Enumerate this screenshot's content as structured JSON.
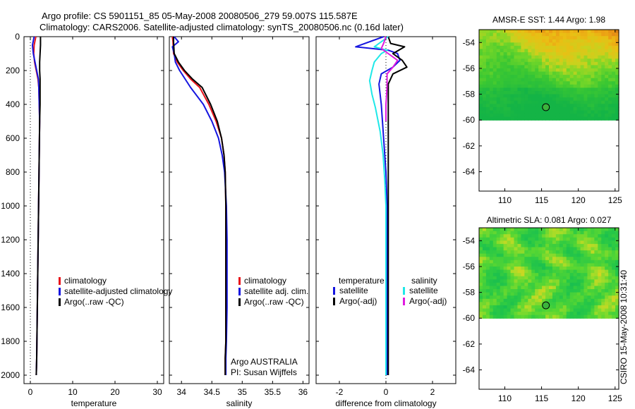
{
  "header": {
    "line1": "Argo profile: CS 5901151_85 05-May-2008 20080506_279 59.007S 115.587E",
    "line2": "Climatology: CARS2006. Satellite-adjusted climatology: synTS_20080506.nc (0.16d later)"
  },
  "watermark": "CSIRO 15-May-2008 10:31:40",
  "colors": {
    "red": "#e8121a",
    "blue": "#1515e0",
    "black": "#000000",
    "cyan": "#1ee8e8",
    "magenta": "#e01ae0"
  },
  "chart_data": [
    {
      "type": "line",
      "xlabel": "temperature",
      "ylabel": "",
      "xlim": [
        -1.5,
        31.5
      ],
      "ylim": [
        0,
        2050
      ],
      "xticks": [
        0,
        10,
        20,
        30
      ],
      "yticks": [
        0,
        200,
        400,
        600,
        800,
        1000,
        1200,
        1400,
        1600,
        1800,
        2000
      ],
      "legend": {
        "position": "middle-right",
        "entries": [
          {
            "label": "climatology",
            "color": "#e8121a"
          },
          {
            "label": "satellite-adjusted climatology",
            "color": "#1515e0"
          },
          {
            "label": "Argo(..raw -QC)",
            "color": "#000000"
          }
        ]
      },
      "series": [
        {
          "name": "climatology",
          "color": "#e8121a",
          "x": [
            1.3,
            0.9,
            0.8,
            1.0,
            1.4,
            1.8,
            2.0,
            2.1,
            2.2,
            2.1,
            2.0,
            1.9,
            1.8,
            1.7,
            1.6,
            1.5,
            1.4
          ],
          "y": [
            0,
            50,
            100,
            150,
            200,
            250,
            300,
            400,
            500,
            700,
            900,
            1100,
            1300,
            1500,
            1700,
            1900,
            2000
          ]
        },
        {
          "name": "satellite-adjusted climatology",
          "color": "#1515e0",
          "x": [
            0.9,
            0.5,
            0.7,
            1.1,
            1.5,
            1.9,
            2.0,
            2.1,
            2.2,
            2.1,
            2.0,
            1.9,
            1.8,
            1.7,
            1.6,
            1.5,
            1.4
          ],
          "y": [
            0,
            50,
            100,
            150,
            200,
            250,
            300,
            400,
            500,
            700,
            900,
            1100,
            1300,
            1500,
            1700,
            1900,
            2000
          ]
        },
        {
          "name": "Argo(..raw -QC)",
          "color": "#000000",
          "x": [
            2.4,
            2.4,
            2.3,
            2.2,
            2.2,
            2.3,
            2.3,
            2.3,
            2.2,
            2.1,
            2.0,
            1.9,
            1.8,
            1.7,
            1.6,
            1.5,
            1.4
          ],
          "y": [
            0,
            50,
            100,
            150,
            200,
            250,
            300,
            400,
            500,
            700,
            900,
            1100,
            1300,
            1500,
            1700,
            1900,
            2000
          ]
        }
      ]
    },
    {
      "type": "line",
      "xlabel": "salinity",
      "ylabel": "",
      "xlim": [
        33.8,
        36.1
      ],
      "ylim": [
        0,
        2050
      ],
      "xticks": [
        34,
        34.5,
        35,
        35.5,
        36
      ],
      "xticklabels": [
        "34",
        "34.5",
        "35",
        "35.5",
        "36"
      ],
      "yticks": [
        0,
        200,
        400,
        600,
        800,
        1000,
        1200,
        1400,
        1600,
        1800,
        2000
      ],
      "legend": {
        "position": "middle-right",
        "entries": [
          {
            "label": "climatology",
            "color": "#e8121a"
          },
          {
            "label": "satellite adj. clim.",
            "color": "#1515e0"
          },
          {
            "label": "Argo(..raw -QC)",
            "color": "#000000"
          }
        ]
      },
      "annotations": [
        "Argo AUSTRALIA",
        "PI: Susan Wijffels"
      ],
      "series": [
        {
          "name": "climatology",
          "color": "#e8121a",
          "x": [
            33.85,
            33.86,
            33.87,
            33.93,
            34.03,
            34.15,
            34.3,
            34.45,
            34.57,
            34.66,
            34.7,
            34.72,
            34.73,
            34.73,
            34.73,
            34.73,
            34.73,
            34.72,
            34.72
          ],
          "y": [
            0,
            30,
            100,
            150,
            200,
            250,
            300,
            400,
            500,
            600,
            700,
            800,
            1000,
            1200,
            1400,
            1600,
            1800,
            1900,
            2000
          ]
        },
        {
          "name": "satellite adj. clim.",
          "color": "#1515e0",
          "x": [
            33.88,
            33.95,
            33.85,
            33.88,
            33.9,
            33.97,
            34.15,
            34.36,
            34.5,
            34.61,
            34.67,
            34.71,
            34.74,
            34.75,
            34.75,
            34.75,
            34.74,
            34.73,
            34.73
          ],
          "y": [
            0,
            30,
            60,
            100,
            150,
            200,
            300,
            400,
            500,
            600,
            700,
            800,
            1000,
            1200,
            1400,
            1600,
            1800,
            1900,
            2000
          ]
        },
        {
          "name": "Argo(..raw -QC)",
          "color": "#000000",
          "x": [
            33.87,
            33.87,
            33.88,
            33.95,
            34.05,
            34.18,
            34.34,
            34.48,
            34.59,
            34.66,
            34.7,
            34.72,
            34.73,
            34.73,
            34.73,
            34.73,
            34.73,
            34.72,
            34.72
          ],
          "y": [
            0,
            30,
            100,
            150,
            200,
            250,
            300,
            400,
            500,
            600,
            700,
            800,
            1000,
            1200,
            1400,
            1600,
            1800,
            1900,
            2000
          ]
        }
      ]
    },
    {
      "type": "line",
      "xlabel": "difference from climatology",
      "ylabel": "",
      "xlim": [
        -3.0,
        3.0
      ],
      "ylim": [
        0,
        2050
      ],
      "xticks": [
        -2,
        0,
        2
      ],
      "yticks": [
        0,
        200,
        400,
        600,
        800,
        1000,
        1200,
        1400,
        1600,
        1800,
        2000
      ],
      "legend": {
        "position": "middle",
        "groups": [
          {
            "title": "temperature",
            "entries": [
              {
                "label": "satellite",
                "color": "#1515e0"
              },
              {
                "label": "Argo(-adj)",
                "color": "#000000"
              }
            ]
          },
          {
            "title": "salinity",
            "entries": [
              {
                "label": "satellite",
                "color": "#1ee8e8"
              },
              {
                "label": "Argo(-adj)",
                "color": "#e01ae0"
              }
            ]
          }
        ]
      },
      "series": [
        {
          "name": "temperature satellite",
          "color": "#1515e0",
          "x": [
            -0.1,
            -1.3,
            0.1,
            0.5,
            0.6,
            0.3,
            -0.2,
            -0.3,
            -0.2,
            -0.1,
            0.0,
            0.05,
            0.05,
            0.05,
            0.05,
            0.05,
            0.05,
            0.05
          ],
          "y": [
            0,
            60,
            80,
            100,
            140,
            180,
            220,
            280,
            400,
            600,
            800,
            1000,
            1200,
            1400,
            1600,
            1800,
            1900,
            2000
          ]
        },
        {
          "name": "temperature Argo(-adj)",
          "color": "#000000",
          "x": [
            0.1,
            0.2,
            0.8,
            0.3,
            0.7,
            0.9,
            0.3,
            0.1,
            0.1,
            0.1,
            0.1,
            0.1,
            0.1,
            0.1,
            0.1,
            0.1,
            0.1,
            0.1
          ],
          "y": [
            0,
            40,
            60,
            100,
            140,
            180,
            220,
            280,
            400,
            600,
            800,
            1000,
            1200,
            1400,
            1600,
            1800,
            1900,
            2000
          ]
        },
        {
          "name": "salinity satellite",
          "color": "#1ee8e8",
          "x": [
            0.1,
            -0.5,
            0.05,
            -0.2,
            -0.5,
            -0.6,
            -0.7,
            -0.6,
            -0.45,
            -0.25,
            -0.12,
            -0.05,
            0.0,
            0.0,
            0.0,
            0.0,
            0.0,
            0.0
          ],
          "y": [
            0,
            60,
            80,
            100,
            150,
            200,
            260,
            340,
            420,
            560,
            700,
            850,
            1000,
            1200,
            1400,
            1600,
            1800,
            2000
          ]
        },
        {
          "name": "salinity Argo(-adj)",
          "color": "#e01ae0",
          "x": [
            0.0,
            -0.1,
            -0.2,
            0.1,
            0.5,
            0.3,
            0.05,
            0.05,
            0.0,
            0.0
          ],
          "y": [
            0,
            40,
            70,
            100,
            140,
            180,
            220,
            300,
            400,
            500
          ]
        }
      ]
    },
    {
      "type": "heatmap",
      "title": "AMSR-E SST: 1.44 Argo: 1.98",
      "xlim": [
        106.5,
        125.5
      ],
      "ylim": [
        -65.5,
        -53
      ],
      "xticks": [
        110,
        115,
        120,
        125
      ],
      "yticks": [
        -54,
        -56,
        -58,
        -60,
        -62,
        -64
      ],
      "data_extent_lat": [
        -60,
        -53
      ],
      "marker": {
        "lon": 115.587,
        "lat": -59.007
      },
      "field": "sst"
    },
    {
      "type": "heatmap",
      "title": "Altimetric SLA: 0.081 Argo: 0.027",
      "xlim": [
        106.5,
        125.5
      ],
      "ylim": [
        -65.5,
        -53
      ],
      "xticks": [
        110,
        115,
        120,
        125
      ],
      "yticks": [
        -54,
        -56,
        -58,
        -60,
        -62,
        -64
      ],
      "data_extent_lat": [
        -60,
        -53
      ],
      "marker": {
        "lon": 115.587,
        "lat": -59.007
      },
      "field": "sla"
    }
  ]
}
